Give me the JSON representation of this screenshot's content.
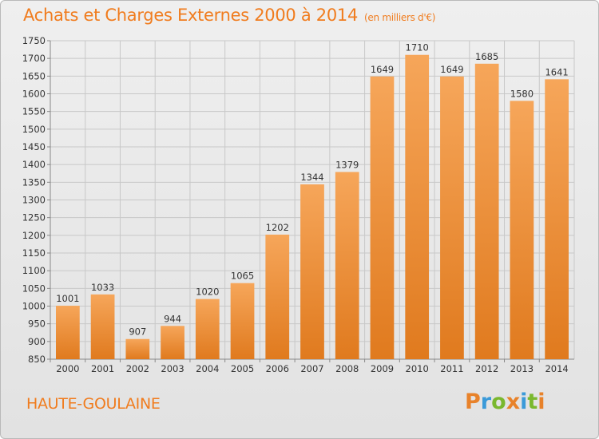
{
  "header": {
    "title": "Achats et Charges Externes 2000 à 2014",
    "unit": "(en milliers d'€)"
  },
  "footer": {
    "commune": "HAUTE-GOULAINE",
    "logo_text": "Proxiti",
    "logo_colors": [
      "#e8822a",
      "#3a9ad9",
      "#7ab82e",
      "#e8822a",
      "#3a9ad9",
      "#7ab82e",
      "#e8822a"
    ]
  },
  "colors": {
    "bar_top": "#f6a65a",
    "bar_bottom": "#e07a1e",
    "accent": "#f07c1e",
    "grid": "#c8c8c8"
  },
  "chart_data": {
    "type": "bar",
    "title": "Achats et Charges Externes 2000 à 2014",
    "subtitle": "(en milliers d'€)",
    "categories": [
      "2000",
      "2001",
      "2002",
      "2003",
      "2004",
      "2005",
      "2006",
      "2007",
      "2008",
      "2009",
      "2010",
      "2011",
      "2012",
      "2013",
      "2014"
    ],
    "values": [
      1001,
      1033,
      907,
      944,
      1020,
      1065,
      1202,
      1344,
      1379,
      1649,
      1710,
      1649,
      1685,
      1580,
      1641
    ],
    "ylim": [
      850,
      1750
    ],
    "yticks": [
      850,
      900,
      950,
      1000,
      1050,
      1100,
      1150,
      1200,
      1250,
      1300,
      1350,
      1400,
      1450,
      1500,
      1550,
      1600,
      1650,
      1700,
      1750
    ],
    "grid": true,
    "xlabel": "",
    "ylabel": ""
  }
}
